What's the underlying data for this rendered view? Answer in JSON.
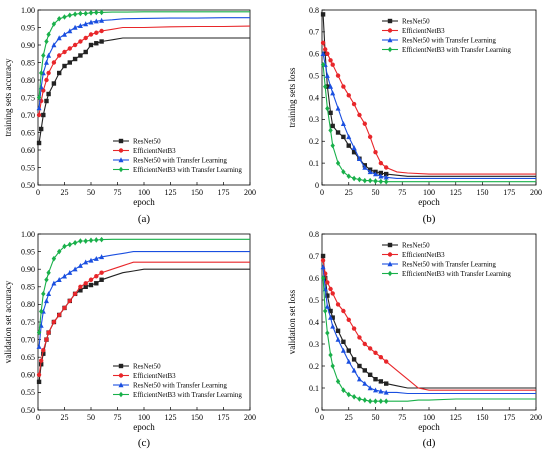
{
  "figure": {
    "series_colors": [
      "#222222",
      "#e8262a",
      "#1a4fe0",
      "#19b04a"
    ],
    "series_markers": [
      "square",
      "circle",
      "triangle",
      "diamond"
    ]
  },
  "chart_data": [
    {
      "id": "a",
      "type": "line",
      "panel_label": "(a)",
      "xlabel": "epoch",
      "ylabel": "training sets accuracy",
      "xlim": [
        0,
        200
      ],
      "ylim": [
        0.5,
        1.0
      ],
      "xticks": [
        0,
        25,
        50,
        75,
        100,
        125,
        150,
        175,
        200
      ],
      "yticks": [
        0.5,
        0.55,
        0.6,
        0.65,
        0.7,
        0.75,
        0.8,
        0.85,
        0.9,
        0.95,
        1.0
      ],
      "ytick_labels": [
        "0.50",
        "0.55",
        "0.60",
        "0.65",
        "0.70",
        "0.75",
        "0.80",
        "0.85",
        "0.90",
        "0.95",
        "1.00"
      ],
      "grid": false,
      "legend_position": "bottom-right",
      "series": [
        {
          "name": "ResNet50",
          "x": [
            1,
            3,
            5,
            8,
            10,
            15,
            20,
            25,
            30,
            35,
            40,
            45,
            50,
            55,
            60,
            70,
            80,
            100,
            125,
            150,
            175,
            200
          ],
          "values": [
            0.62,
            0.66,
            0.7,
            0.74,
            0.76,
            0.79,
            0.82,
            0.84,
            0.85,
            0.86,
            0.87,
            0.88,
            0.9,
            0.905,
            0.91,
            0.915,
            0.92,
            0.92,
            0.92,
            0.92,
            0.92,
            0.92
          ]
        },
        {
          "name": "EfficientNetB3",
          "x": [
            1,
            3,
            5,
            8,
            10,
            15,
            20,
            25,
            30,
            35,
            40,
            45,
            50,
            55,
            60,
            70,
            80,
            100,
            125,
            150,
            175,
            200
          ],
          "values": [
            0.7,
            0.74,
            0.77,
            0.8,
            0.82,
            0.85,
            0.87,
            0.88,
            0.89,
            0.9,
            0.91,
            0.92,
            0.93,
            0.935,
            0.94,
            0.945,
            0.95,
            0.95,
            0.952,
            0.953,
            0.953,
            0.954
          ]
        },
        {
          "name": "ResNet50 with Transfer Learning",
          "x": [
            1,
            3,
            5,
            8,
            10,
            15,
            20,
            25,
            30,
            35,
            40,
            45,
            50,
            55,
            60,
            70,
            80,
            100,
            125,
            150,
            175,
            200
          ],
          "values": [
            0.72,
            0.78,
            0.82,
            0.85,
            0.87,
            0.9,
            0.92,
            0.93,
            0.94,
            0.95,
            0.955,
            0.96,
            0.965,
            0.968,
            0.97,
            0.972,
            0.975,
            0.976,
            0.977,
            0.977,
            0.978,
            0.978
          ]
        },
        {
          "name": "EfficientNetB3 with Transfer Learning",
          "x": [
            1,
            3,
            5,
            8,
            10,
            15,
            20,
            25,
            30,
            35,
            40,
            45,
            50,
            55,
            60,
            70,
            80,
            100,
            125,
            150,
            175,
            200
          ],
          "values": [
            0.75,
            0.82,
            0.87,
            0.91,
            0.93,
            0.96,
            0.975,
            0.98,
            0.985,
            0.988,
            0.99,
            0.99,
            0.992,
            0.993,
            0.993,
            0.994,
            0.994,
            0.995,
            0.995,
            0.995,
            0.995,
            0.995
          ]
        }
      ]
    },
    {
      "id": "b",
      "type": "line",
      "panel_label": "(b)",
      "xlabel": "epoch",
      "ylabel": "training sets loss",
      "xlim": [
        0,
        200
      ],
      "ylim": [
        0,
        0.8
      ],
      "xticks": [
        0,
        25,
        50,
        75,
        100,
        125,
        150,
        175,
        200
      ],
      "yticks": [
        0,
        0.1,
        0.2,
        0.3,
        0.4,
        0.5,
        0.6,
        0.7,
        0.8
      ],
      "ytick_labels": [
        "0",
        "0.1",
        "0.2",
        "0.3",
        "0.4",
        "0.5",
        "0.6",
        "0.7",
        "0.8"
      ],
      "grid": false,
      "legend_position": "top-right",
      "series": [
        {
          "name": "ResNet50",
          "x": [
            1,
            3,
            5,
            8,
            10,
            15,
            20,
            25,
            30,
            35,
            40,
            45,
            50,
            55,
            60,
            70,
            80,
            100,
            125,
            150,
            175,
            200
          ],
          "values": [
            0.78,
            0.6,
            0.45,
            0.33,
            0.27,
            0.24,
            0.22,
            0.18,
            0.15,
            0.12,
            0.09,
            0.07,
            0.06,
            0.055,
            0.05,
            0.045,
            0.04,
            0.04,
            0.04,
            0.04,
            0.04,
            0.04
          ]
        },
        {
          "name": "EfficientNetB3",
          "x": [
            1,
            3,
            5,
            8,
            10,
            15,
            20,
            25,
            30,
            35,
            40,
            45,
            50,
            55,
            60,
            70,
            80,
            100,
            125,
            150,
            175,
            200
          ],
          "values": [
            0.65,
            0.62,
            0.6,
            0.57,
            0.55,
            0.5,
            0.45,
            0.41,
            0.37,
            0.32,
            0.28,
            0.22,
            0.15,
            0.1,
            0.08,
            0.06,
            0.055,
            0.05,
            0.05,
            0.05,
            0.05,
            0.05
          ]
        },
        {
          "name": "ResNet50 with Transfer Learning",
          "x": [
            1,
            3,
            5,
            8,
            10,
            15,
            20,
            25,
            30,
            35,
            40,
            45,
            50,
            55,
            60,
            70,
            80,
            100,
            125,
            150,
            175,
            200
          ],
          "values": [
            0.6,
            0.55,
            0.5,
            0.45,
            0.42,
            0.35,
            0.28,
            0.22,
            0.17,
            0.12,
            0.08,
            0.06,
            0.05,
            0.04,
            0.035,
            0.03,
            0.03,
            0.03,
            0.03,
            0.03,
            0.03,
            0.03
          ]
        },
        {
          "name": "EfficientNetB3 with Transfer Learning",
          "x": [
            1,
            3,
            5,
            8,
            10,
            15,
            20,
            25,
            30,
            35,
            40,
            45,
            50,
            55,
            60,
            70,
            80,
            100,
            125,
            150,
            175,
            200
          ],
          "values": [
            0.55,
            0.45,
            0.35,
            0.25,
            0.18,
            0.1,
            0.06,
            0.04,
            0.03,
            0.025,
            0.02,
            0.02,
            0.018,
            0.016,
            0.015,
            0.015,
            0.015,
            0.015,
            0.015,
            0.015,
            0.015,
            0.015
          ]
        }
      ]
    },
    {
      "id": "c",
      "type": "line",
      "panel_label": "(c)",
      "xlabel": "epoch",
      "ylabel": "validation set accuracy",
      "xlim": [
        0,
        200
      ],
      "ylim": [
        0.5,
        1.0
      ],
      "xticks": [
        0,
        25,
        50,
        75,
        100,
        125,
        150,
        175,
        200
      ],
      "yticks": [
        0.5,
        0.55,
        0.6,
        0.65,
        0.7,
        0.75,
        0.8,
        0.85,
        0.9,
        0.95,
        1.0
      ],
      "ytick_labels": [
        "0.50",
        "0.55",
        "0.60",
        "0.65",
        "0.70",
        "0.75",
        "0.80",
        "0.85",
        "0.90",
        "0.95",
        "1.00"
      ],
      "grid": false,
      "legend_position": "bottom-right",
      "series": [
        {
          "name": "ResNet50",
          "x": [
            1,
            3,
            5,
            8,
            10,
            15,
            20,
            25,
            30,
            35,
            40,
            45,
            50,
            55,
            60,
            70,
            80,
            90,
            100,
            125,
            150,
            175,
            200
          ],
          "values": [
            0.58,
            0.63,
            0.66,
            0.7,
            0.72,
            0.75,
            0.77,
            0.79,
            0.81,
            0.83,
            0.84,
            0.85,
            0.855,
            0.86,
            0.87,
            0.88,
            0.89,
            0.895,
            0.9,
            0.9,
            0.9,
            0.9,
            0.9
          ]
        },
        {
          "name": "EfficientNetB3",
          "x": [
            1,
            3,
            5,
            8,
            10,
            15,
            20,
            25,
            30,
            35,
            40,
            45,
            50,
            55,
            60,
            70,
            80,
            90,
            100,
            125,
            150,
            175,
            200
          ],
          "values": [
            0.6,
            0.64,
            0.67,
            0.7,
            0.72,
            0.75,
            0.77,
            0.79,
            0.81,
            0.83,
            0.85,
            0.86,
            0.87,
            0.88,
            0.89,
            0.9,
            0.91,
            0.92,
            0.92,
            0.92,
            0.92,
            0.92,
            0.92
          ]
        },
        {
          "name": "ResNet50 with Transfer Learning",
          "x": [
            1,
            3,
            5,
            8,
            10,
            15,
            20,
            25,
            30,
            35,
            40,
            45,
            50,
            55,
            60,
            70,
            80,
            90,
            100,
            125,
            150,
            175,
            200
          ],
          "values": [
            0.68,
            0.74,
            0.78,
            0.81,
            0.83,
            0.86,
            0.87,
            0.88,
            0.89,
            0.9,
            0.91,
            0.92,
            0.925,
            0.93,
            0.935,
            0.94,
            0.945,
            0.95,
            0.95,
            0.95,
            0.95,
            0.95,
            0.95
          ]
        },
        {
          "name": "EfficientNetB3 with Transfer Learning",
          "x": [
            1,
            3,
            5,
            8,
            10,
            15,
            20,
            25,
            30,
            35,
            40,
            45,
            50,
            55,
            60,
            70,
            80,
            90,
            100,
            125,
            150,
            175,
            200
          ],
          "values": [
            0.72,
            0.78,
            0.83,
            0.87,
            0.89,
            0.93,
            0.95,
            0.965,
            0.97,
            0.975,
            0.98,
            0.98,
            0.982,
            0.983,
            0.984,
            0.985,
            0.985,
            0.985,
            0.985,
            0.985,
            0.985,
            0.985,
            0.985
          ]
        }
      ]
    },
    {
      "id": "d",
      "type": "line",
      "panel_label": "(d)",
      "xlabel": "epoch",
      "ylabel": "validation set loss",
      "xlim": [
        0,
        200
      ],
      "ylim": [
        0,
        0.8
      ],
      "xticks": [
        0,
        25,
        50,
        75,
        100,
        125,
        150,
        175,
        200
      ],
      "yticks": [
        0,
        0.1,
        0.2,
        0.3,
        0.4,
        0.5,
        0.6,
        0.7,
        0.8
      ],
      "ytick_labels": [
        "0",
        "0.1",
        "0.2",
        "0.3",
        "0.4",
        "0.5",
        "0.6",
        "0.7",
        "0.8"
      ],
      "grid": false,
      "legend_position": "top-right",
      "series": [
        {
          "name": "ResNet50",
          "x": [
            1,
            3,
            5,
            8,
            10,
            15,
            20,
            25,
            30,
            35,
            40,
            45,
            50,
            55,
            60,
            70,
            80,
            90,
            100,
            125,
            150,
            175,
            200
          ],
          "values": [
            0.7,
            0.6,
            0.52,
            0.45,
            0.42,
            0.36,
            0.31,
            0.27,
            0.23,
            0.2,
            0.18,
            0.16,
            0.14,
            0.13,
            0.12,
            0.11,
            0.1,
            0.1,
            0.1,
            0.1,
            0.1,
            0.1,
            0.1
          ]
        },
        {
          "name": "EfficientNetB3",
          "x": [
            1,
            3,
            5,
            8,
            10,
            15,
            20,
            25,
            30,
            35,
            40,
            45,
            50,
            55,
            60,
            70,
            80,
            90,
            100,
            125,
            150,
            175,
            200
          ],
          "values": [
            0.68,
            0.62,
            0.58,
            0.55,
            0.53,
            0.48,
            0.45,
            0.41,
            0.37,
            0.33,
            0.3,
            0.28,
            0.26,
            0.24,
            0.22,
            0.18,
            0.14,
            0.1,
            0.09,
            0.09,
            0.09,
            0.09,
            0.09
          ]
        },
        {
          "name": "ResNet50 with Transfer Learning",
          "x": [
            1,
            3,
            5,
            8,
            10,
            15,
            20,
            25,
            30,
            35,
            40,
            45,
            50,
            55,
            60,
            70,
            80,
            90,
            100,
            125,
            150,
            175,
            200
          ],
          "values": [
            0.65,
            0.55,
            0.47,
            0.42,
            0.38,
            0.32,
            0.27,
            0.22,
            0.18,
            0.14,
            0.12,
            0.1,
            0.09,
            0.085,
            0.08,
            0.08,
            0.075,
            0.075,
            0.075,
            0.075,
            0.075,
            0.075,
            0.075
          ]
        },
        {
          "name": "EfficientNetB3 with Transfer Learning",
          "x": [
            1,
            3,
            5,
            8,
            10,
            15,
            20,
            25,
            30,
            35,
            40,
            45,
            50,
            55,
            60,
            70,
            80,
            90,
            100,
            125,
            150,
            175,
            200
          ],
          "values": [
            0.6,
            0.45,
            0.35,
            0.25,
            0.2,
            0.13,
            0.09,
            0.07,
            0.06,
            0.05,
            0.045,
            0.04,
            0.04,
            0.04,
            0.04,
            0.04,
            0.04,
            0.045,
            0.045,
            0.05,
            0.05,
            0.05,
            0.05
          ]
        }
      ]
    }
  ]
}
